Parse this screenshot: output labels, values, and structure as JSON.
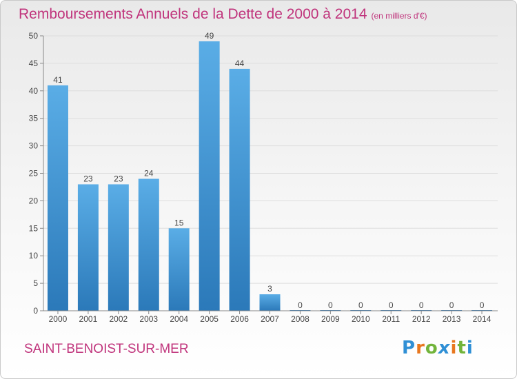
{
  "header": {
    "title": "Remboursements Annuels de la Dette de 2000 à 2014",
    "subtitle": "(en milliers d'€)"
  },
  "footer": {
    "commune": "SAINT-BENOIST-SUR-MER",
    "logo": {
      "letters": [
        "P",
        "r",
        "o",
        "x",
        "i",
        "t",
        "i"
      ],
      "colors": [
        "#2f8fd5",
        "#e8771f",
        "#72b43b",
        "#2f8fd5",
        "#e8771f",
        "#72b43b",
        "#2f8fd5"
      ]
    }
  },
  "chart_data": {
    "type": "bar",
    "title": "Remboursements Annuels de la Dette de 2000 à 2014",
    "subtitle": "(en milliers d'€)",
    "xlabel": "",
    "ylabel": "",
    "categories": [
      "2000",
      "2001",
      "2002",
      "2003",
      "2004",
      "2005",
      "2006",
      "2007",
      "2008",
      "2009",
      "2010",
      "2011",
      "2012",
      "2013",
      "2014"
    ],
    "values": [
      41,
      23,
      23,
      24,
      15,
      49,
      44,
      3,
      0,
      0,
      0,
      0,
      0,
      0,
      0
    ],
    "ylim": [
      0,
      50
    ],
    "yticks": [
      0,
      5,
      10,
      15,
      20,
      25,
      30,
      35,
      40,
      45,
      50
    ],
    "grid": true,
    "data_labels": true,
    "colors": {
      "bar_top": "#5aade6",
      "bar_bottom": "#2b79b9",
      "label": "#444444",
      "grid": "#dddddd"
    }
  }
}
